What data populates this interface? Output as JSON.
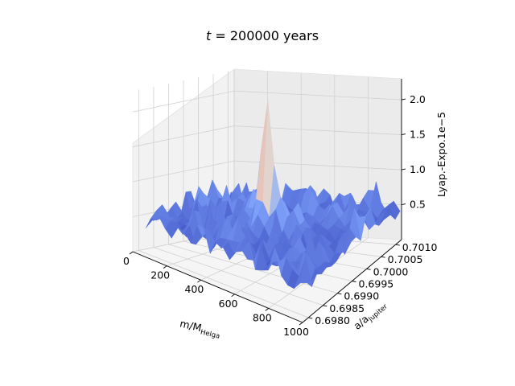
{
  "chart_data": {
    "type": "surface3d",
    "title": {
      "prefix": "t",
      "suffix": " = 200000 years"
    },
    "xlabel": {
      "main": "m/M",
      "sub": "Helga"
    },
    "ylabel": {
      "main": "a/a",
      "sub": "Jupiter"
    },
    "zlabel": "Lyap.-Expo.",
    "z_offset_label": "1e−5",
    "x_ticks": [
      0,
      200,
      400,
      600,
      800,
      1000
    ],
    "y_ticks": [
      "0.6980",
      "0.6985",
      "0.6990",
      "0.6995",
      "0.7000",
      "0.7005",
      "0.7010"
    ],
    "z_ticks": [
      "0.5",
      "1.0",
      "1.5",
      "2.0"
    ],
    "x_range": [
      0,
      1000
    ],
    "y_range": [
      0.6978,
      0.7012
    ],
    "z_range": [
      0.0,
      2.3
    ],
    "colormap": "coolwarm",
    "grid": true,
    "peak": {
      "x": 500,
      "y": 0.6995,
      "z": 2.2
    }
  }
}
